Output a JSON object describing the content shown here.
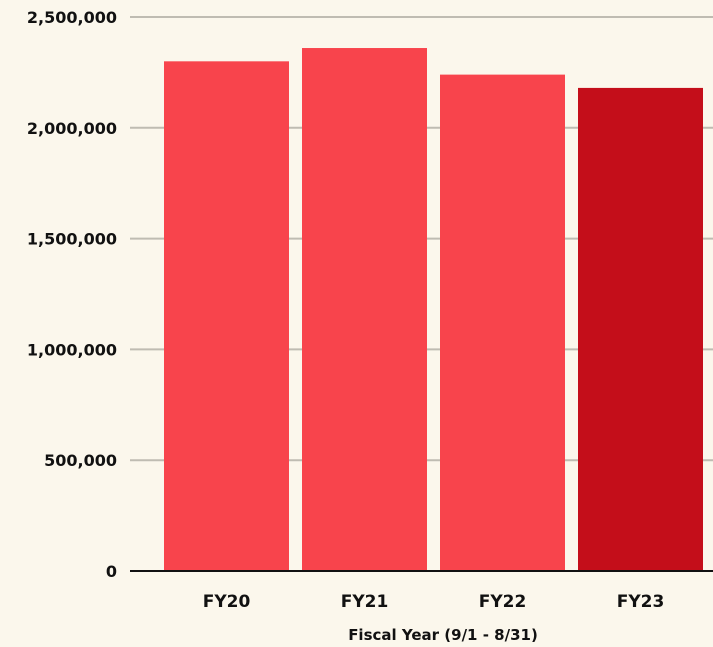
{
  "chart_data": {
    "type": "bar",
    "title": "",
    "xlabel": "Fiscal Year (9/1 - 8/31)",
    "ylabel": "",
    "categories": [
      "FY20",
      "FY21",
      "FY22",
      "FY23"
    ],
    "values": [
      2300000,
      2360000,
      2240000,
      2180000
    ],
    "ylim": [
      0,
      2500000
    ],
    "yticks": [
      0,
      500000,
      1000000,
      1500000,
      2000000,
      2500000
    ],
    "ytick_labels": [
      "0",
      "500,000",
      "1,000,000",
      "1,500,000",
      "2,000,000",
      "2,500,000"
    ],
    "grid": true,
    "legend": "none",
    "colors": {
      "bar": "#f8444c",
      "highlight_bar": "#c40e1a",
      "highlight_category": "FY23",
      "grid": "#bfbcb2",
      "axis": "#111111",
      "background": "#fbf7ec"
    }
  }
}
